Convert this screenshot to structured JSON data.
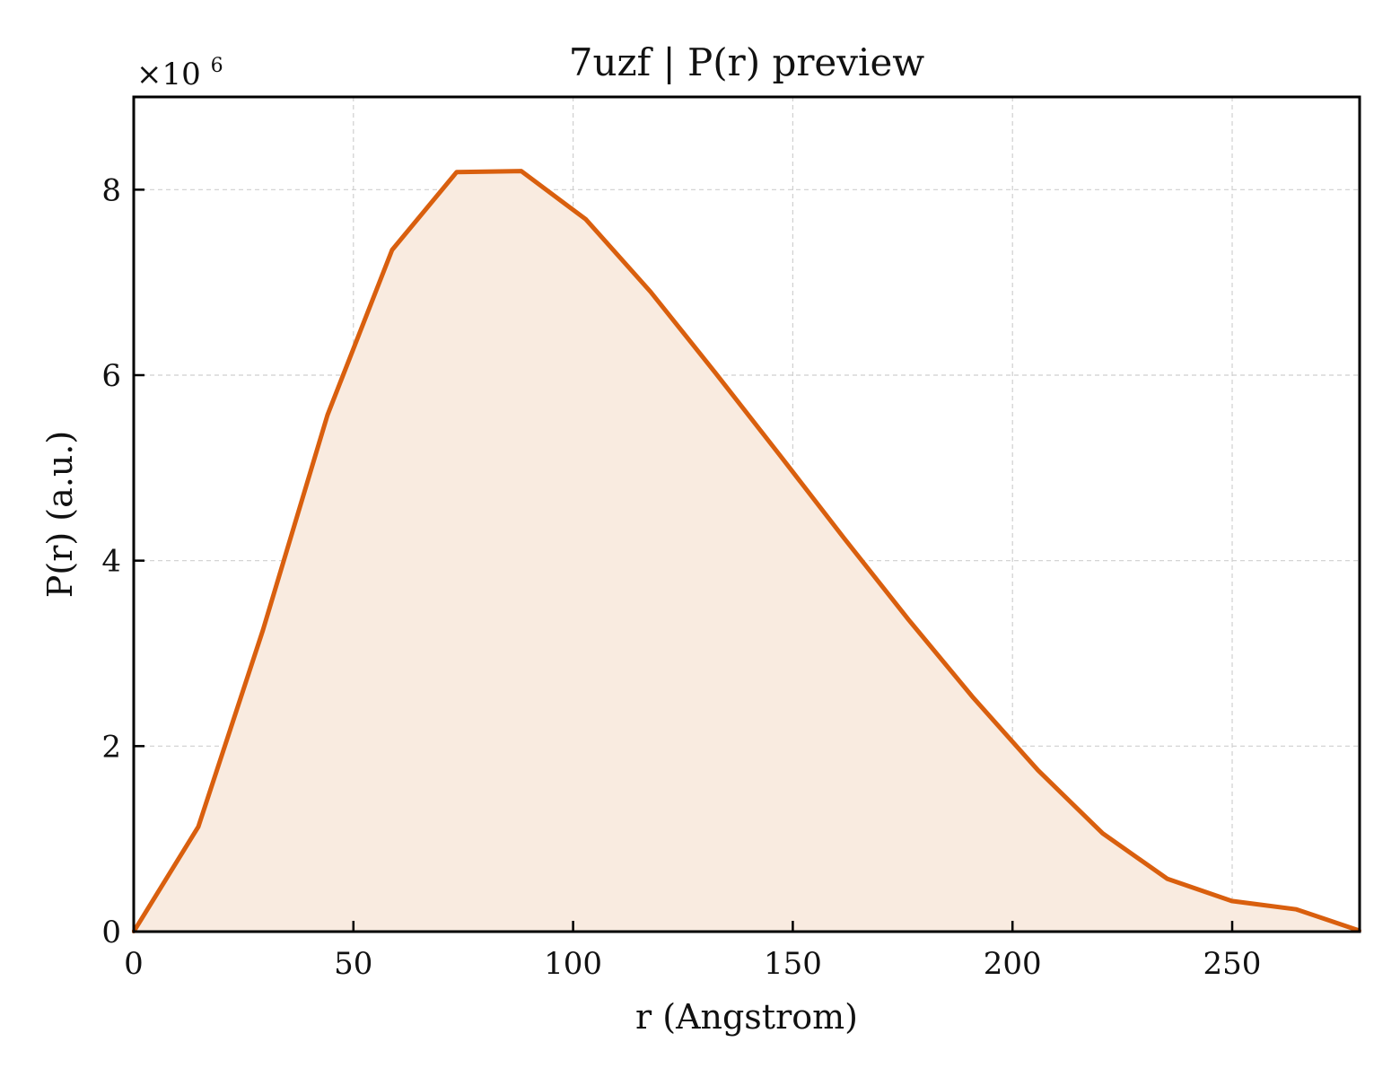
{
  "chart_data": {
    "type": "area",
    "title": "7uzf | P(r) preview",
    "xlabel": "r (Angstrom)",
    "ylabel": "P(r) (a.u.)",
    "y_multiplier_label": "×10",
    "y_multiplier_exponent": "6",
    "xlim": [
      0,
      279
    ],
    "ylim": [
      0,
      9.0
    ],
    "x_ticks": [
      0,
      50,
      100,
      150,
      200,
      250
    ],
    "x_tick_labels": [
      "0",
      "50",
      "100",
      "150",
      "200",
      "250"
    ],
    "y_ticks": [
      0,
      2,
      4,
      6,
      8
    ],
    "y_tick_labels": [
      "0",
      "2",
      "4",
      "6",
      "8"
    ],
    "grid": true,
    "line_color": "#d95f0e",
    "fill_color": "#f9ebe0",
    "series": [
      {
        "x": [
          0,
          14.7,
          29.4,
          44.1,
          58.8,
          73.5,
          88.2,
          102.9,
          117.6,
          132.3,
          147.0,
          161.7,
          176.4,
          191.1,
          205.8,
          220.5,
          235.2,
          249.9,
          264.6,
          279.0
        ],
        "y": [
          0,
          1.13,
          3.25,
          5.57,
          7.35,
          8.19,
          8.2,
          7.68,
          6.9,
          6.03,
          5.14,
          4.24,
          3.36,
          2.52,
          1.74,
          1.06,
          0.57,
          0.33,
          0.24,
          0.01
        ]
      }
    ]
  }
}
